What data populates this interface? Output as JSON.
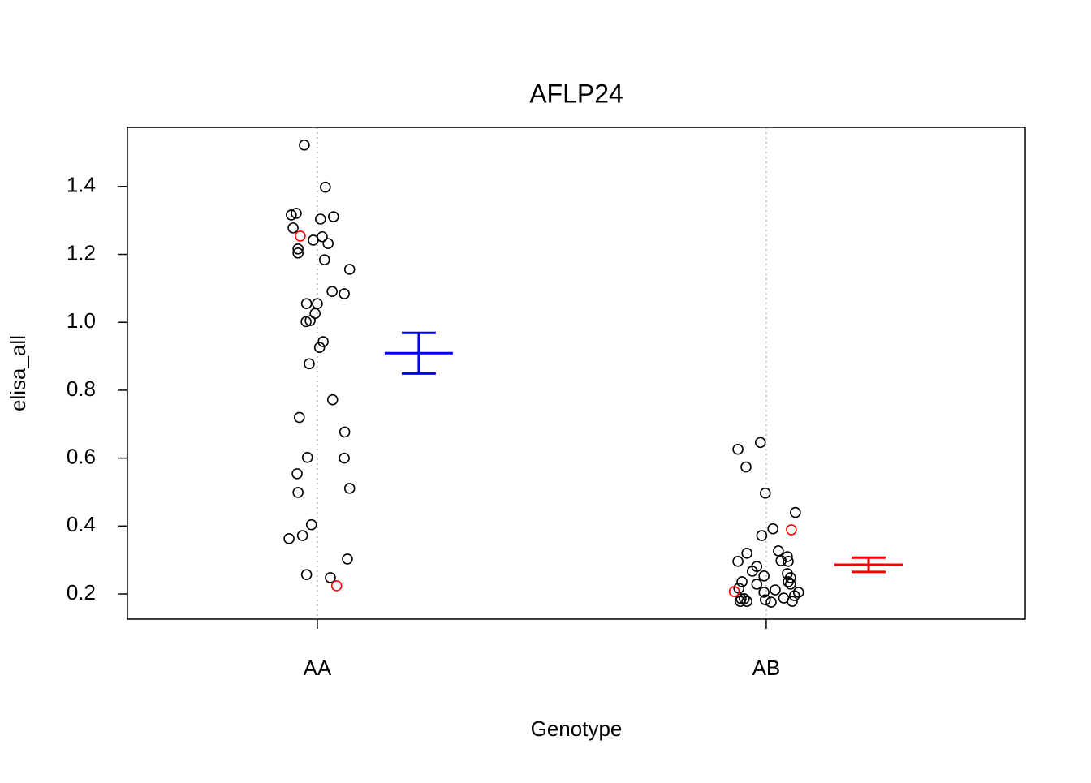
{
  "chart_data": {
    "type": "scatter",
    "title": "AFLP24",
    "x_label": "Genotype",
    "y_label": "elisa_all",
    "xlim": [
      0.577,
      2.577
    ],
    "xticks": [
      {
        "value": 1,
        "label": "AA"
      },
      {
        "value": 2,
        "label": "AB"
      }
    ],
    "ylim": [
      0.126,
      1.574
    ],
    "yticks": [
      0.2,
      0.4,
      0.6,
      0.8,
      {
        "value": 1,
        "label": "1.0"
      },
      1.2,
      1.4
    ],
    "x_grid": true,
    "series": [
      {
        "color": "#000000",
        "x": [
          0.971,
          1.018,
          0.942,
          0.953,
          1.036,
          1.007,
          0.946,
          1.011,
          0.991,
          1.024,
          0.957,
          0.957,
          1.016,
          1.072,
          1.033,
          1.06,
          0.976,
          1.0,
          0.995,
          0.975,
          0.984,
          1.013,
          1.005,
          0.982,
          1.034,
          0.96,
          1.061,
          0.978,
          1.06,
          0.955,
          1.072,
          0.957,
          0.987,
          0.937,
          0.967,
          1.067,
          0.976,
          1.029,
          1.937,
          1.987,
          1.955,
          1.998,
          2.065,
          2.015,
          1.99,
          2.027,
          1.957,
          2.047,
          2.033,
          2.049,
          1.937,
          1.979,
          1.969,
          1.995,
          2.047,
          2.054,
          2.049,
          1.946,
          2.054,
          1.979,
          1.939,
          2.02,
          2.072,
          1.995,
          2.063,
          2.039,
          1.944,
          1.951,
          1.998,
          2.011,
          2.058,
          1.942,
          1.957
        ],
        "values": [
          1.522,
          1.398,
          1.316,
          1.321,
          1.311,
          1.304,
          1.278,
          1.252,
          1.242,
          1.232,
          1.216,
          1.204,
          1.184,
          1.156,
          1.091,
          1.084,
          1.055,
          1.055,
          1.026,
          1.002,
          1.005,
          0.943,
          0.926,
          0.878,
          0.772,
          0.72,
          0.677,
          0.602,
          0.6,
          0.554,
          0.511,
          0.499,
          0.404,
          0.363,
          0.372,
          0.303,
          0.257,
          0.248,
          0.626,
          0.646,
          0.574,
          0.497,
          0.44,
          0.392,
          0.372,
          0.327,
          0.32,
          0.31,
          0.298,
          0.296,
          0.296,
          0.281,
          0.267,
          0.253,
          0.26,
          0.248,
          0.236,
          0.236,
          0.229,
          0.229,
          0.217,
          0.212,
          0.205,
          0.205,
          0.195,
          0.188,
          0.186,
          0.186,
          0.183,
          0.176,
          0.178,
          0.178,
          0.178
        ]
      },
      {
        "color": "#ff0000",
        "x": [
          0.962,
          1.043,
          1.929,
          2.056
        ],
        "values": [
          1.254,
          0.224,
          0.207,
          0.389
        ]
      }
    ],
    "error_bars": [
      {
        "color": "#0000ff",
        "x": 1.226,
        "value": 0.909,
        "error": 0.06
      },
      {
        "color": "#ff0000",
        "x": 2.228,
        "value": 0.286,
        "error": 0.021
      }
    ]
  }
}
